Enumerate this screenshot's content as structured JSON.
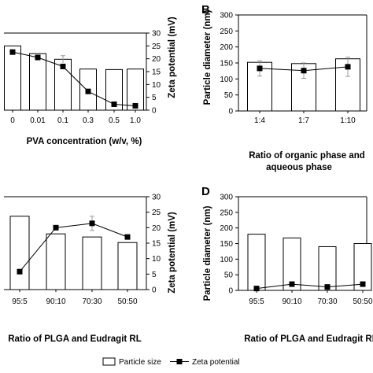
{
  "legend": {
    "bar_label": "Particle size",
    "line_label": "Zeta potential"
  },
  "colors": {
    "bar_fill": "#ffffff",
    "stroke": "#000000",
    "marker": "#000000",
    "errorbar": "#999999"
  },
  "chart_data": [
    {
      "panel": "",
      "type": "bar",
      "categories": [
        "0",
        "0.01",
        "0.1",
        "0.3",
        "0.5",
        "1.0"
      ],
      "xlabel": "PVA concentration (w/v, %)",
      "ylabel_left": "",
      "ylabel_right": "Zeta potential (mV)",
      "right_ylim": [
        0,
        30
      ],
      "right_ticks": [
        "0",
        "5",
        "10",
        "15",
        "20",
        "25",
        "30"
      ],
      "series": [
        {
          "kind": "bar",
          "axis": "left",
          "values": [
            250,
            220,
            198,
            160,
            158,
            160
          ],
          "errors": [
            0,
            0,
            14,
            0,
            0,
            0
          ]
        },
        {
          "kind": "line",
          "axis": "right",
          "values": [
            22.6,
            20.5,
            17.0,
            7.3,
            2.3,
            1.7
          ],
          "errors": [
            0.5,
            0.5,
            0.8,
            0.3,
            0.3,
            0.3
          ]
        }
      ]
    },
    {
      "panel": "B",
      "type": "bar",
      "categories": [
        "1:4",
        "1:7",
        "1:10"
      ],
      "xlabel": "Ratio of organic phase and aqueous phase",
      "xlabel_lines": [
        "Ratio of organic phase and",
        "aqueous phase"
      ],
      "ylabel_left": "Particle diameter (nm)",
      "ylabel_right": "",
      "left_ylim": [
        0,
        300
      ],
      "left_ticks": [
        "0",
        "50",
        "100",
        "150",
        "200",
        "250",
        "300"
      ],
      "series": [
        {
          "kind": "bar",
          "axis": "left",
          "values": [
            152,
            148,
            163
          ],
          "errors": [
            0,
            0,
            0
          ]
        },
        {
          "kind": "line",
          "axis": "left",
          "values": [
            133,
            126,
            138
          ],
          "errors": [
            24,
            24,
            30
          ]
        }
      ]
    },
    {
      "panel": "",
      "type": "bar",
      "categories": [
        "95:5",
        "90:10",
        "70:30",
        "50:50"
      ],
      "xlabel": "Ratio of PLGA and Eudragit RL",
      "ylabel_left": "",
      "ylabel_right": "Zeta potential (mV)",
      "right_ylim": [
        0,
        30
      ],
      "right_ticks": [
        "0",
        "5",
        "10",
        "15",
        "20",
        "25",
        "30"
      ],
      "series": [
        {
          "kind": "bar",
          "axis": "left",
          "values": [
            237,
            180,
            170,
            152
          ],
          "errors": [
            0,
            0,
            0,
            0
          ]
        },
        {
          "kind": "line",
          "axis": "right",
          "values": [
            5.8,
            20.0,
            21.4,
            17.0
          ],
          "errors": [
            0.5,
            0.6,
            2.3,
            0.4
          ]
        }
      ]
    },
    {
      "panel": "D",
      "type": "bar",
      "categories": [
        "95:5",
        "90:10",
        "70:30",
        "50:50"
      ],
      "xlabel": "Ratio of PLGA and Eudragit RL",
      "ylabel_left": "Particle diameter (nm)",
      "ylabel_right": "",
      "left_ylim": [
        0,
        300
      ],
      "left_ticks": [
        "0",
        "50",
        "100",
        "150",
        "200",
        "250",
        "300"
      ],
      "series": [
        {
          "kind": "bar",
          "axis": "left",
          "values": [
            180,
            168,
            140,
            150
          ],
          "errors": [
            0,
            0,
            0,
            0
          ]
        },
        {
          "kind": "line",
          "axis": "left",
          "values": [
            6,
            20,
            11,
            20
          ],
          "errors": [
            0,
            0,
            0,
            0
          ]
        }
      ]
    }
  ]
}
